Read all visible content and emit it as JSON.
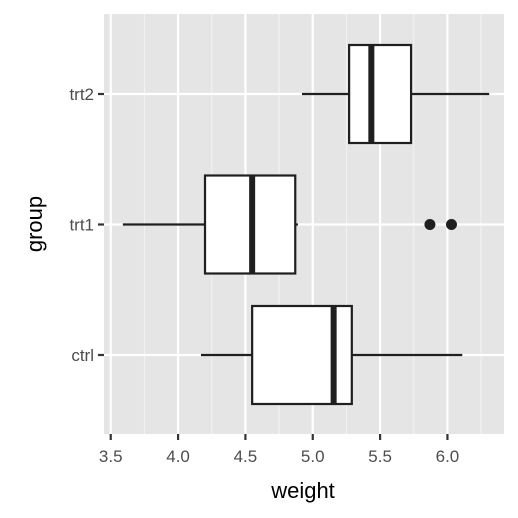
{
  "chart_data": {
    "type": "boxplot",
    "orientation": "horizontal",
    "xlabel": "weight",
    "ylabel": "group",
    "xlim": [
      3.45,
      6.42
    ],
    "x_ticks": [
      3.5,
      4.0,
      4.5,
      5.0,
      5.5,
      6.0
    ],
    "x_tick_labels": [
      "3.5",
      "4.0",
      "4.5",
      "5.0",
      "5.5",
      "6.0"
    ],
    "categories": [
      "ctrl",
      "trt1",
      "trt2"
    ],
    "boxes": [
      {
        "group": "ctrl",
        "whisker_low": 4.17,
        "q1": 4.55,
        "median": 5.155,
        "q3": 5.29,
        "whisker_high": 6.11,
        "outliers": []
      },
      {
        "group": "trt1",
        "whisker_low": 3.59,
        "q1": 4.2,
        "median": 4.55,
        "q3": 4.87,
        "whisker_high": 4.89,
        "outliers": [
          5.87,
          6.03
        ]
      },
      {
        "group": "trt2",
        "whisker_low": 4.92,
        "q1": 5.27,
        "median": 5.435,
        "q3": 5.73,
        "whisker_high": 6.31,
        "outliers": []
      }
    ],
    "grid": true,
    "colors": {
      "panel": "#e5e5e5",
      "grid_major": "#ffffff",
      "grid_minor": "#f2f2f2",
      "box_fill": "#ffffff",
      "box_line": "#1f1f1f",
      "tick": "#333333",
      "tick_text": "#4d4d4d",
      "title": "#000000"
    }
  }
}
